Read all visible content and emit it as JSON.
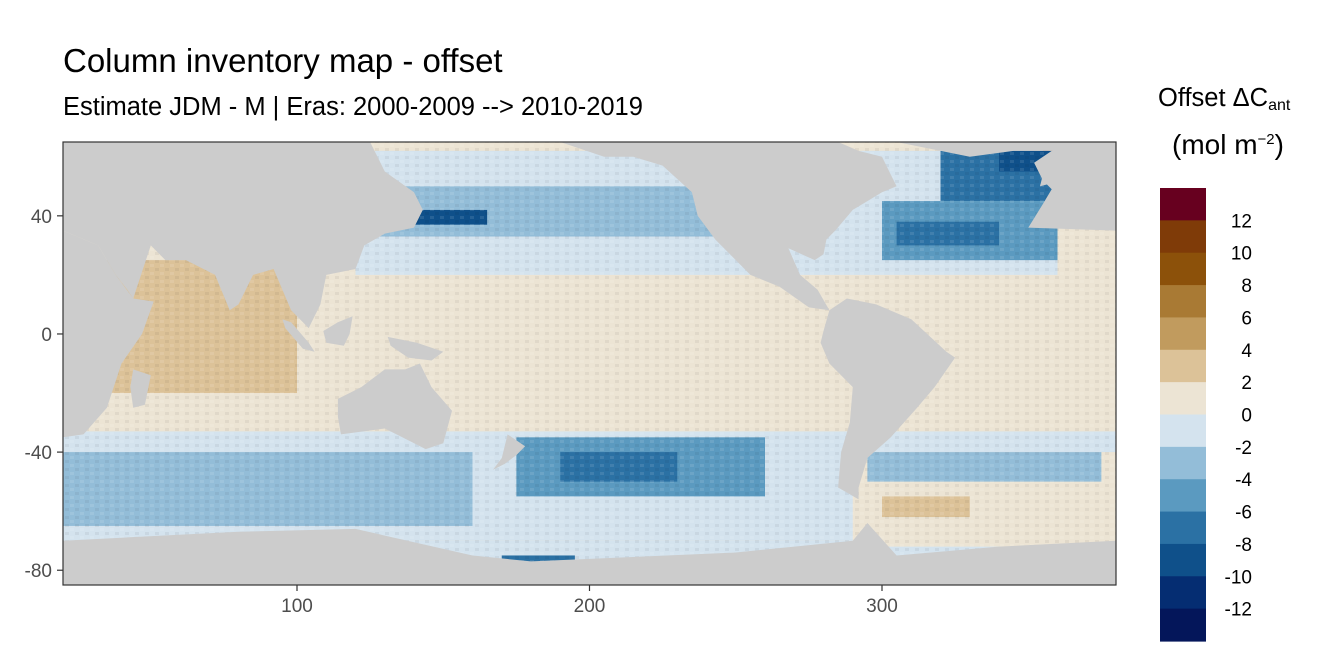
{
  "chart_data": {
    "type": "heatmap",
    "title": "Column inventory map - offset",
    "subtitle": "Estimate JDM - M | Eras: 2000-2009 --> 2010-2019",
    "legend": {
      "title_line1_base": "Offset ΔC",
      "title_line1_sub": "ant",
      "title_line2_base": "(mol m",
      "title_line2_sup": "−2",
      "title_line2_end": ")",
      "breaks": [
        12,
        10,
        8,
        6,
        4,
        2,
        0,
        -2,
        -4,
        -6,
        -8,
        -10,
        -12
      ],
      "break_labels": [
        "12",
        "10",
        "8",
        "6",
        "4",
        "2",
        "0",
        "-2",
        "-4",
        "-6",
        "-8",
        "-10",
        "-12"
      ],
      "colors": [
        "#67001f",
        "#7f3b08",
        "#8c510a",
        "#a97a34",
        "#c19b5e",
        "#dcc298",
        "#ece4d4",
        "#d4e3ee",
        "#93bdd8",
        "#5b9ac0",
        "#2b71a4",
        "#0f508a",
        "#052d72",
        "#04165a"
      ],
      "position": "right"
    },
    "x_axis": {
      "ticks": [
        100,
        200,
        300
      ],
      "tick_labels": [
        "100",
        "200",
        "300"
      ],
      "range": [
        20,
        380
      ]
    },
    "y_axis": {
      "ticks": [
        40,
        0,
        -40,
        -80
      ],
      "tick_labels": [
        "40",
        "0",
        "-40",
        "-80"
      ],
      "range": [
        -85,
        65
      ]
    },
    "land_color": "#cccccc",
    "ocean_default_color": "#ece4d4",
    "zones": [
      {
        "lon": [
          20,
          380
        ],
        "lat": [
          -33,
          20
        ],
        "bin": 6
      },
      {
        "lon": [
          30,
          100
        ],
        "lat": [
          -20,
          25
        ],
        "bin": 5
      },
      {
        "lon": [
          20,
          380
        ],
        "lat": [
          -70,
          -33
        ],
        "bin": 7
      },
      {
        "lon": [
          120,
          360
        ],
        "lat": [
          20,
          62
        ],
        "bin": 7
      },
      {
        "lon": [
          20,
          380
        ],
        "lat": [
          -85,
          -70
        ],
        "bin": 7
      },
      {
        "lon": [
          120,
          250
        ],
        "lat": [
          33,
          50
        ],
        "bin": 8
      },
      {
        "lon": [
          20,
          160
        ],
        "lat": [
          -65,
          -40
        ],
        "bin": 8
      },
      {
        "lon": [
          175,
          260
        ],
        "lat": [
          -55,
          -35
        ],
        "bin": 9
      },
      {
        "lon": [
          190,
          230
        ],
        "lat": [
          -50,
          -40
        ],
        "bin": 10
      },
      {
        "lon": [
          130,
          165
        ],
        "lat": [
          37,
          42
        ],
        "bin": 11
      },
      {
        "lon": [
          300,
          360
        ],
        "lat": [
          25,
          45
        ],
        "bin": 9
      },
      {
        "lon": [
          305,
          340
        ],
        "lat": [
          30,
          38
        ],
        "bin": 10
      },
      {
        "lon": [
          320,
          370
        ],
        "lat": [
          45,
          62
        ],
        "bin": 10
      },
      {
        "lon": [
          340,
          365
        ],
        "lat": [
          55,
          62
        ],
        "bin": 11
      },
      {
        "lon": [
          290,
          380
        ],
        "lat": [
          -72,
          -40
        ],
        "bin": 6
      },
      {
        "lon": [
          295,
          375
        ],
        "lat": [
          -50,
          -40
        ],
        "bin": 8
      },
      {
        "lon": [
          300,
          330
        ],
        "lat": [
          -62,
          -55
        ],
        "bin": 5
      },
      {
        "lon": [
          170,
          195
        ],
        "lat": [
          -84,
          -75
        ],
        "bin": 10
      },
      {
        "lon": [
          355,
          375
        ],
        "lat": [
          62,
          65
        ],
        "bin": 1
      }
    ],
    "land": [
      {
        "name": "asia",
        "points": [
          [
            20,
            65
          ],
          [
            125,
            65
          ],
          [
            130,
            55
          ],
          [
            140,
            48
          ],
          [
            143,
            42
          ],
          [
            140,
            36
          ],
          [
            130,
            34
          ],
          [
            123,
            30
          ],
          [
            120,
            22
          ],
          [
            110,
            20
          ],
          [
            108,
            10
          ],
          [
            104,
            2
          ],
          [
            98,
            8
          ],
          [
            92,
            22
          ],
          [
            85,
            20
          ],
          [
            80,
            10
          ],
          [
            77,
            8
          ],
          [
            72,
            20
          ],
          [
            62,
            25
          ],
          [
            55,
            25
          ],
          [
            50,
            30
          ],
          [
            44,
            12
          ],
          [
            42,
            15
          ],
          [
            38,
            20
          ],
          [
            32,
            30
          ],
          [
            20,
            35
          ]
        ]
      },
      {
        "name": "africa",
        "points": [
          [
            20,
            35
          ],
          [
            32,
            30
          ],
          [
            38,
            20
          ],
          [
            44,
            12
          ],
          [
            51,
            11
          ],
          [
            47,
            0
          ],
          [
            40,
            -10
          ],
          [
            35,
            -25
          ],
          [
            27,
            -34
          ],
          [
            20,
            -35
          ]
        ]
      },
      {
        "name": "australia",
        "points": [
          [
            114,
            -22
          ],
          [
            122,
            -18
          ],
          [
            130,
            -12
          ],
          [
            137,
            -12
          ],
          [
            142,
            -10
          ],
          [
            146,
            -18
          ],
          [
            153,
            -26
          ],
          [
            150,
            -37
          ],
          [
            144,
            -39
          ],
          [
            136,
            -35
          ],
          [
            130,
            -32
          ],
          [
            115,
            -34
          ],
          [
            114,
            -28
          ]
        ]
      },
      {
        "name": "north-america",
        "points": [
          [
            190,
            65
          ],
          [
            205,
            60
          ],
          [
            215,
            60
          ],
          [
            225,
            57
          ],
          [
            235,
            48
          ],
          [
            237,
            40
          ],
          [
            243,
            32
          ],
          [
            250,
            25
          ],
          [
            255,
            20
          ],
          [
            265,
            16
          ],
          [
            275,
            9
          ],
          [
            282,
            8
          ],
          [
            278,
            15
          ],
          [
            272,
            20
          ],
          [
            268,
            29
          ],
          [
            277,
            25
          ],
          [
            280,
            27
          ],
          [
            281,
            32
          ],
          [
            284,
            35
          ],
          [
            290,
            42
          ],
          [
            295,
            45
          ],
          [
            300,
            48
          ],
          [
            305,
            50
          ],
          [
            300,
            60
          ],
          [
            292,
            62
          ],
          [
            285,
            65
          ]
        ]
      },
      {
        "name": "south-america",
        "points": [
          [
            282,
            8
          ],
          [
            288,
            12
          ],
          [
            298,
            10
          ],
          [
            310,
            5
          ],
          [
            322,
            -6
          ],
          [
            325,
            -8
          ],
          [
            318,
            -18
          ],
          [
            312,
            -25
          ],
          [
            303,
            -35
          ],
          [
            295,
            -42
          ],
          [
            292,
            -52
          ],
          [
            292,
            -56
          ],
          [
            285,
            -52
          ],
          [
            286,
            -40
          ],
          [
            289,
            -30
          ],
          [
            290,
            -18
          ],
          [
            282,
            -10
          ],
          [
            279,
            -3
          ],
          [
            280,
            1
          ]
        ]
      },
      {
        "name": "greenland",
        "points": [
          [
            305,
            65
          ],
          [
            380,
            65
          ],
          [
            380,
            62
          ],
          [
            345,
            62
          ],
          [
            330,
            60
          ]
        ]
      },
      {
        "name": "europe",
        "points": [
          [
            350,
            36
          ],
          [
            355,
            44
          ],
          [
            358,
            49
          ],
          [
            355,
            52
          ],
          [
            352,
            58
          ],
          [
            358,
            62
          ],
          [
            370,
            65
          ],
          [
            380,
            65
          ],
          [
            380,
            35
          ]
        ]
      },
      {
        "name": "new-zealand",
        "points": [
          [
            172,
            -34
          ],
          [
            178,
            -38
          ],
          [
            175,
            -41
          ],
          [
            171,
            -44
          ],
          [
            167,
            -46
          ],
          [
            170,
            -42
          ]
        ]
      },
      {
        "name": "madagascar",
        "points": [
          [
            44,
            -12
          ],
          [
            50,
            -14
          ],
          [
            48,
            -24
          ],
          [
            44,
            -25
          ],
          [
            43,
            -18
          ]
        ]
      },
      {
        "name": "antarctica",
        "points": [
          [
            20,
            -85
          ],
          [
            380,
            -85
          ],
          [
            380,
            -70
          ],
          [
            340,
            -72
          ],
          [
            305,
            -75
          ],
          [
            295,
            -64
          ],
          [
            290,
            -70
          ],
          [
            250,
            -74
          ],
          [
            180,
            -77
          ],
          [
            160,
            -75
          ],
          [
            120,
            -66
          ],
          [
            80,
            -67
          ],
          [
            40,
            -69
          ],
          [
            20,
            -70
          ]
        ]
      },
      {
        "name": "new-guinea",
        "points": [
          [
            131,
            -1
          ],
          [
            141,
            -3
          ],
          [
            150,
            -6
          ],
          [
            146,
            -9
          ],
          [
            138,
            -8
          ],
          [
            132,
            -4
          ]
        ]
      },
      {
        "name": "borneo",
        "points": [
          [
            109,
            1
          ],
          [
            114,
            4
          ],
          [
            119,
            6
          ],
          [
            118,
            0
          ],
          [
            116,
            -4
          ],
          [
            110,
            -3
          ]
        ]
      },
      {
        "name": "sumatra",
        "points": [
          [
            95,
            5
          ],
          [
            98,
            4
          ],
          [
            104,
            -3
          ],
          [
            106,
            -6
          ],
          [
            102,
            -5
          ],
          [
            96,
            2
          ]
        ]
      },
      {
        "name": "britain",
        "points": [
          [
            354,
            50
          ],
          [
            358,
            51
          ],
          [
            359,
            55
          ],
          [
            356,
            58
          ],
          [
            353,
            57
          ],
          [
            355,
            54
          ]
        ]
      }
    ]
  }
}
